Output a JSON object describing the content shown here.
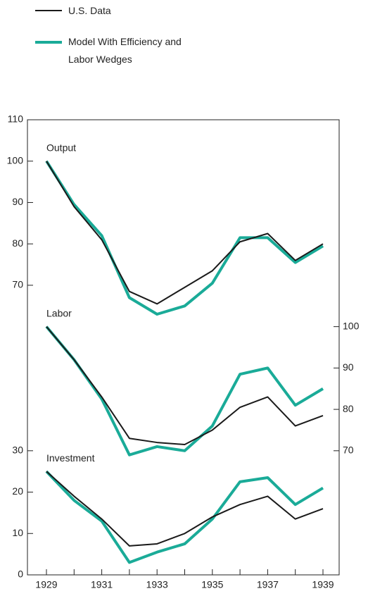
{
  "chart_data": {
    "type": "line",
    "x": [
      1929,
      1930,
      1931,
      1932,
      1933,
      1934,
      1935,
      1936,
      1937,
      1938,
      1939
    ],
    "xticks": [
      1929,
      1931,
      1933,
      1935,
      1937,
      1939
    ],
    "ylim": [
      0,
      110
    ],
    "yticks": [
      0,
      10,
      20,
      30,
      70,
      80,
      90,
      100,
      110
    ],
    "y2lim": [
      40,
      150
    ],
    "y2ticks": [
      70,
      80,
      90,
      100
    ],
    "legend": [
      {
        "name": "U.S. Data",
        "color": "#1a1a1a"
      },
      {
        "name": "Model With Efficiency and Labor Wedges",
        "color": "#1aab98"
      }
    ],
    "panels": [
      {
        "label": "Output",
        "axis": "y",
        "series": [
          {
            "values": [
              100,
              89,
              81,
              68.5,
              65.5,
              69.5,
              73.5,
              80.5,
              82.5,
              76,
              80
            ]
          },
          {
            "values": [
              100,
              89.5,
              82,
              67,
              63,
              65,
              70.5,
              81.5,
              81.5,
              75.5,
              79.5
            ]
          }
        ]
      },
      {
        "label": "Labor",
        "axis": "y2",
        "series": [
          {
            "values": [
              100,
              92,
              83,
              73,
              72,
              71.5,
              75,
              80.5,
              83,
              76,
              78.5
            ]
          },
          {
            "values": [
              100,
              92,
              82.5,
              69,
              71,
              70,
              76,
              88.5,
              90,
              81,
              85
            ]
          }
        ]
      },
      {
        "label": "Investment",
        "axis": "y",
        "series": [
          {
            "values": [
              25,
              19,
              13.5,
              7,
              7.5,
              10,
              14,
              17,
              19,
              13.5,
              16
            ]
          },
          {
            "values": [
              25,
              18,
              13,
              3,
              5.5,
              7.5,
              13.5,
              22.5,
              23.5,
              17,
              21
            ]
          }
        ]
      }
    ]
  }
}
